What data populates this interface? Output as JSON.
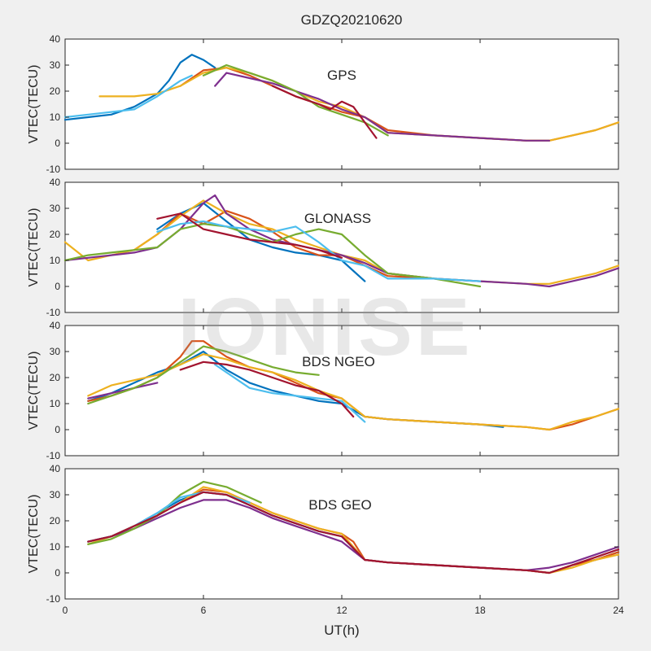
{
  "figure": {
    "title": "GDZQ20210620",
    "xlabel": "UT(h)",
    "watermark": "IONISE"
  },
  "colors": {
    "axes": "#262626",
    "background": "#f0f0f0",
    "panel": "#ffffff",
    "series_palette": [
      "#0072bd",
      "#d95319",
      "#edb120",
      "#7e2f8e",
      "#77ac30",
      "#4dbeee",
      "#a2142f"
    ]
  },
  "chart_data": [
    {
      "type": "line",
      "title": "GPS",
      "ylabel": "VTEC(TECU)",
      "xlim": [
        0,
        24
      ],
      "ylim": [
        -10,
        40
      ],
      "xticks": [
        0,
        6,
        12,
        18,
        24
      ],
      "yticks": [
        -10,
        0,
        10,
        20,
        30,
        40
      ],
      "grid": false,
      "series": [
        {
          "x": [
            0,
            1,
            2,
            3,
            4,
            4.5,
            5,
            5.5,
            6,
            6.5
          ],
          "y": [
            9,
            10,
            11,
            14,
            19,
            24,
            31,
            34,
            32,
            29
          ]
        },
        {
          "x": [
            5,
            6,
            7,
            8,
            9,
            10,
            11,
            12,
            13,
            14,
            16,
            18,
            20,
            21,
            22,
            23,
            24
          ],
          "y": [
            22,
            28,
            29,
            26,
            22,
            18,
            15,
            12,
            10,
            5,
            3,
            2,
            1,
            1,
            3,
            5,
            8
          ]
        },
        {
          "x": [
            1.5,
            3,
            4,
            5,
            6,
            7,
            8,
            9,
            10,
            11,
            12,
            13,
            14,
            16,
            18,
            20,
            21,
            22,
            23,
            24
          ],
          "y": [
            18,
            18,
            19,
            22,
            27,
            29,
            27,
            24,
            20,
            16,
            14,
            10,
            4,
            3,
            2,
            1,
            1,
            3,
            5,
            8
          ]
        },
        {
          "x": [
            6.5,
            7,
            8,
            9,
            10,
            11,
            12,
            13,
            14,
            16,
            18,
            20,
            21
          ],
          "y": [
            22,
            27,
            25,
            23,
            20,
            17,
            13,
            10,
            4,
            3,
            2,
            1,
            1
          ]
        },
        {
          "x": [
            6,
            7,
            8,
            9,
            10,
            11,
            12,
            13,
            14
          ],
          "y": [
            26,
            30,
            27,
            24,
            20,
            14,
            11,
            8,
            3
          ]
        },
        {
          "x": [
            0,
            1,
            2,
            3,
            4,
            5,
            5.5
          ],
          "y": [
            10,
            11,
            12,
            13,
            18,
            24,
            26
          ]
        },
        {
          "x": [
            9,
            10,
            11,
            11.5,
            12,
            12.5,
            13,
            13.5
          ],
          "y": [
            22,
            18,
            15,
            13,
            16,
            14,
            8,
            2
          ]
        }
      ]
    },
    {
      "type": "line",
      "title": "GLONASS",
      "ylabel": "VTEC(TECU)",
      "xlim": [
        0,
        24
      ],
      "ylim": [
        -10,
        40
      ],
      "xticks": [
        0,
        6,
        12,
        18,
        24
      ],
      "yticks": [
        -10,
        0,
        10,
        20,
        30,
        40
      ],
      "grid": false,
      "series": [
        {
          "x": [
            4,
            5,
            6,
            7,
            8,
            9,
            10,
            11,
            12,
            13
          ],
          "y": [
            22,
            28,
            32,
            25,
            18,
            15,
            13,
            12,
            10,
            2
          ]
        },
        {
          "x": [
            3,
            4,
            5,
            6,
            7,
            8,
            9,
            10,
            11,
            12,
            13,
            14,
            16
          ],
          "y": [
            14,
            20,
            28,
            24,
            29,
            26,
            21,
            15,
            12,
            12,
            8,
            4,
            3
          ]
        },
        {
          "x": [
            0,
            1,
            2,
            3,
            4,
            5,
            6,
            7,
            8,
            9,
            10,
            11,
            12,
            13,
            14,
            16,
            18,
            20,
            21,
            22,
            23,
            24
          ],
          "y": [
            17,
            10,
            12,
            14,
            20,
            27,
            33,
            28,
            24,
            22,
            18,
            15,
            12,
            10,
            5,
            3,
            2,
            1,
            1,
            3,
            5,
            8
          ]
        },
        {
          "x": [
            0,
            1,
            2,
            3,
            4,
            5,
            6,
            6.5,
            7,
            8,
            9,
            10,
            11,
            12,
            13,
            14,
            16,
            18,
            20,
            21,
            22,
            23,
            24
          ],
          "y": [
            10,
            11,
            12,
            13,
            15,
            22,
            32,
            35,
            28,
            22,
            18,
            16,
            14,
            12,
            9,
            5,
            3,
            2,
            1,
            0,
            2,
            4,
            7
          ]
        },
        {
          "x": [
            0,
            1,
            2,
            3,
            4,
            5,
            6,
            7,
            8,
            9,
            10,
            11,
            12,
            13,
            14,
            16,
            18
          ],
          "y": [
            10,
            12,
            13,
            14,
            15,
            22,
            24,
            23,
            20,
            17,
            20,
            22,
            20,
            12,
            5,
            3,
            0
          ]
        },
        {
          "x": [
            4,
            5,
            6,
            7,
            8,
            9,
            10,
            11,
            12,
            13,
            14,
            16,
            18
          ],
          "y": [
            21,
            24,
            25,
            23,
            22,
            21,
            23,
            17,
            10,
            8,
            3,
            3,
            2
          ]
        },
        {
          "x": [
            4,
            5,
            6,
            7,
            8,
            9,
            10,
            11,
            12
          ],
          "y": [
            26,
            28,
            22,
            20,
            18,
            17,
            16,
            14,
            11
          ]
        }
      ]
    },
    {
      "type": "line",
      "title": "BDS NGEO",
      "ylabel": "VTEC(TECU)",
      "xlim": [
        0,
        24
      ],
      "ylim": [
        -10,
        40
      ],
      "xticks": [
        0,
        6,
        12,
        18,
        24
      ],
      "yticks": [
        -10,
        0,
        10,
        20,
        30,
        40
      ],
      "grid": false,
      "series": [
        {
          "x": [
            1,
            2,
            3,
            4,
            5,
            6,
            7,
            8,
            9,
            10,
            11,
            12,
            13,
            14,
            16,
            18,
            19
          ],
          "y": [
            11,
            14,
            18,
            22,
            25,
            30,
            23,
            18,
            15,
            13,
            11,
            10,
            5,
            4,
            3,
            2,
            1
          ]
        },
        {
          "x": [
            1,
            2,
            3,
            4,
            5,
            5.5,
            6,
            7,
            8,
            9,
            10,
            11,
            12,
            13,
            14,
            16,
            18,
            20,
            21,
            22,
            23,
            24
          ],
          "y": [
            11,
            13,
            16,
            20,
            28,
            34,
            34,
            28,
            24,
            22,
            18,
            14,
            12,
            5,
            4,
            3,
            2,
            1,
            0,
            2,
            5,
            8
          ]
        },
        {
          "x": [
            1,
            2,
            3,
            4,
            5,
            6,
            7,
            8,
            9,
            10,
            11,
            12,
            13,
            14,
            16,
            18,
            20,
            21,
            22,
            23,
            24
          ],
          "y": [
            13,
            17,
            19,
            21,
            25,
            29,
            27,
            24,
            22,
            19,
            15,
            12,
            5,
            4,
            3,
            2,
            1,
            0,
            3,
            5,
            8
          ]
        },
        {
          "x": [
            1,
            2,
            3,
            4
          ],
          "y": [
            12,
            14,
            16,
            18
          ]
        },
        {
          "x": [
            1,
            2,
            3,
            4,
            5,
            6,
            7,
            8,
            9,
            10,
            11
          ],
          "y": [
            10,
            13,
            16,
            20,
            26,
            32,
            30,
            27,
            24,
            22,
            21
          ]
        },
        {
          "x": [
            6.5,
            7,
            8,
            9,
            10,
            11,
            12,
            13
          ],
          "y": [
            25,
            22,
            16,
            14,
            13,
            12,
            11,
            3
          ]
        },
        {
          "x": [
            5,
            6,
            7,
            8,
            9,
            10,
            11,
            12,
            12.5
          ],
          "y": [
            23,
            26,
            25,
            23,
            20,
            17,
            15,
            10,
            5
          ]
        }
      ]
    },
    {
      "type": "line",
      "title": "BDS GEO",
      "ylabel": "VTEC(TECU)",
      "xlim": [
        0,
        24
      ],
      "ylim": [
        -10,
        40
      ],
      "xticks": [
        0,
        6,
        12,
        18,
        24
      ],
      "yticks": [
        -10,
        0,
        10,
        20,
        30,
        40
      ],
      "grid": false,
      "series": [
        {
          "x": [
            1,
            2,
            3,
            4,
            5,
            6,
            7,
            8,
            9,
            10,
            11,
            12,
            13,
            14,
            16,
            18,
            20,
            21,
            22,
            23,
            24
          ],
          "y": [
            12,
            14,
            18,
            23,
            28,
            31,
            30,
            26,
            22,
            19,
            16,
            14,
            5,
            4,
            3,
            2,
            1,
            0,
            3,
            5,
            8
          ]
        },
        {
          "x": [
            1,
            2,
            3,
            4,
            5,
            6,
            7,
            8,
            9,
            10,
            11,
            12,
            12.5,
            13,
            14,
            16,
            18,
            20,
            21,
            22,
            23,
            24
          ],
          "y": [
            12,
            14,
            18,
            22,
            27,
            32,
            31,
            27,
            23,
            20,
            17,
            15,
            12,
            5,
            4,
            3,
            2,
            1,
            0,
            3,
            5,
            8
          ]
        },
        {
          "x": [
            1,
            2,
            3,
            4,
            5,
            6,
            7,
            8,
            9,
            10,
            11,
            12,
            13,
            14,
            16,
            18,
            20,
            21,
            22,
            23,
            24
          ],
          "y": [
            11,
            14,
            18,
            22,
            27,
            33,
            31,
            27,
            23,
            20,
            17,
            15,
            5,
            4,
            3,
            2,
            1,
            0,
            2,
            5,
            7
          ]
        },
        {
          "x": [
            1,
            2,
            3,
            4,
            5,
            6,
            7,
            8,
            9,
            10,
            11,
            12,
            13,
            14,
            16,
            18,
            20,
            21,
            22,
            23,
            24
          ],
          "y": [
            12,
            14,
            17,
            21,
            25,
            28,
            28,
            25,
            21,
            18,
            15,
            12,
            5,
            4,
            3,
            2,
            1,
            2,
            4,
            7,
            10
          ]
        },
        {
          "x": [
            1,
            2,
            3,
            4,
            5,
            6,
            7,
            8,
            8.5
          ],
          "y": [
            11,
            13,
            17,
            22,
            30,
            35,
            33,
            29,
            27
          ]
        },
        {
          "x": [
            1,
            2,
            3,
            4,
            5,
            6,
            7,
            8
          ],
          "y": [
            12,
            14,
            18,
            23,
            29,
            31,
            30,
            27
          ]
        },
        {
          "x": [
            1,
            2,
            3,
            4,
            5,
            6,
            7,
            8,
            9,
            10,
            11,
            12,
            13,
            14,
            16,
            18,
            20,
            21,
            22,
            23,
            24
          ],
          "y": [
            12,
            14,
            18,
            22,
            27,
            31,
            30,
            26,
            22,
            19,
            16,
            14,
            5,
            4,
            3,
            2,
            1,
            0,
            3,
            6,
            9
          ]
        }
      ]
    }
  ]
}
